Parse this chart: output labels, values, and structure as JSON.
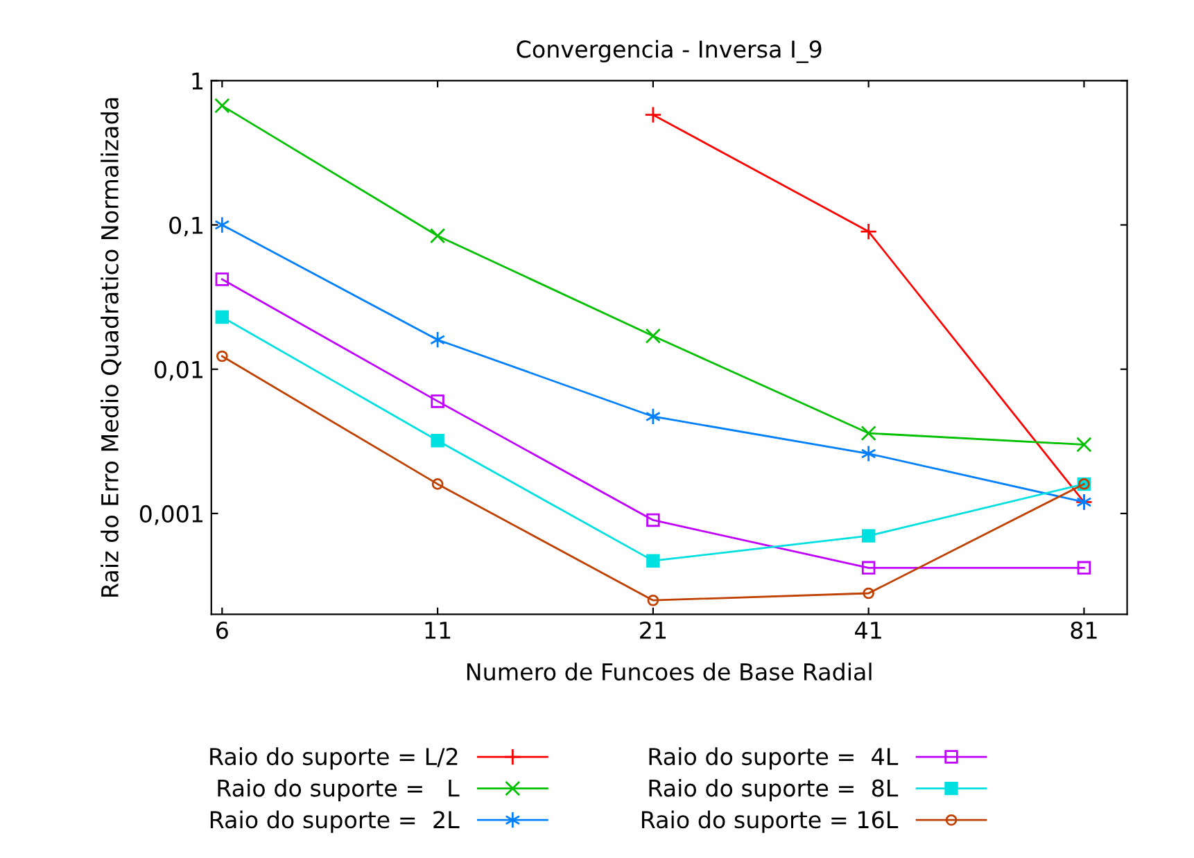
{
  "chart_data": {
    "type": "line",
    "title": "Convergencia - Inversa I_9",
    "xlabel": "Numero de Funcoes de Base Radial",
    "ylabel": "Raiz do Erro Medio Quadratico Normalizada",
    "categories": [
      "6",
      "11",
      "21",
      "41",
      "81"
    ],
    "log": "y",
    "ylim": [
      0.0002,
      1
    ],
    "yticks": [
      {
        "value": 0.001,
        "label": "0,001"
      },
      {
        "value": 0.01,
        "label": "0,01"
      },
      {
        "value": 0.1,
        "label": "0,1"
      },
      {
        "value": 1,
        "label": "1"
      }
    ],
    "grid": false,
    "legend": "bottom",
    "line_style": "solid",
    "series": [
      {
        "name": "Raio do suporte = L/2",
        "color": "#ff0000",
        "marker": "cross",
        "values": [
          null,
          null,
          0.58,
          0.09,
          0.0012
        ]
      },
      {
        "name": "Raio do suporte =   L",
        "color": "#00c000",
        "marker": "cross",
        "values": [
          0.67,
          0.084,
          0.017,
          0.0036,
          0.003
        ]
      },
      {
        "name": "Raio do suporte =  2L",
        "color": "#0080ff",
        "marker": "cross",
        "values": [
          0.1,
          0.016,
          0.0047,
          0.0026,
          0.0012
        ]
      },
      {
        "name": "Raio do suporte =  4L",
        "color": "#c000ff",
        "marker": "square",
        "values": [
          0.042,
          0.006,
          0.0009,
          0.00042,
          0.00042
        ]
      },
      {
        "name": "Raio do suporte =  8L",
        "color": "#00e0e0",
        "marker": "square",
        "values": [
          0.023,
          0.0032,
          0.00047,
          0.0007,
          0.0016
        ]
      },
      {
        "name": "Raio do suporte = 16L",
        "color": "#c04000",
        "marker": "circle",
        "values": [
          0.0123,
          0.0016,
          0.00025,
          0.00028,
          0.0016
        ]
      }
    ]
  }
}
